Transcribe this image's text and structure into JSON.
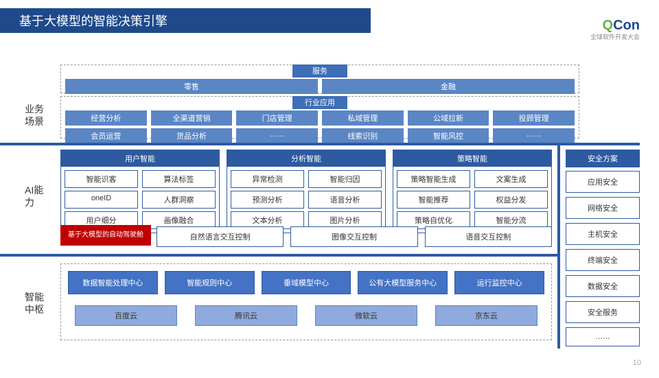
{
  "title": "基于大模型的智能决策引擎",
  "logo": {
    "q": "Q",
    "con": "Con",
    "sub": "全球软件开发大会"
  },
  "page": "10",
  "labels": {
    "biz": "业务\n场景",
    "ai": "AI能力",
    "hub": "智能\n中枢"
  },
  "services": {
    "hdr": "服务",
    "items": [
      "零售",
      "金融"
    ]
  },
  "apps": {
    "hdr": "行业应用",
    "row1": [
      "经营分析",
      "全渠道营销",
      "门店管理",
      "私域管理",
      "公域拉新",
      "投顾管理"
    ],
    "row2": [
      "会员运营",
      "货品分析",
      "……",
      "线索识别",
      "智能风控",
      "……"
    ]
  },
  "user": {
    "hdr": "用户智能",
    "items": [
      "智能识客",
      "算法标签",
      "oneID",
      "人群洞察",
      "用户细分",
      "画像融合"
    ]
  },
  "analysis": {
    "hdr": "分析智能",
    "items": [
      "异常检测",
      "智能归因",
      "预测分析",
      "语音分析",
      "文本分析",
      "图片分析"
    ]
  },
  "strategy": {
    "hdr": "策略智能",
    "items": [
      "策略智能生成",
      "文案生成",
      "智能推荐",
      "权益分发",
      "策略自优化",
      "智能分流"
    ]
  },
  "red": "基于大模型的自动驾驶舱",
  "controls": [
    "自然语言交互控制",
    "图像交互控制",
    "语音交互控制"
  ],
  "security": {
    "hdr": "安全方案",
    "items": [
      "应用安全",
      "网络安全",
      "主机安全",
      "终端安全",
      "数据安全",
      "安全服务",
      "……"
    ]
  },
  "hub": [
    "数据智能处理中心",
    "智能规则中心",
    "垂域模型中心",
    "公有大模型服务中心",
    "运行监控中心"
  ],
  "clouds": [
    "百度云",
    "腾讯云",
    "微软云",
    "京东云"
  ]
}
